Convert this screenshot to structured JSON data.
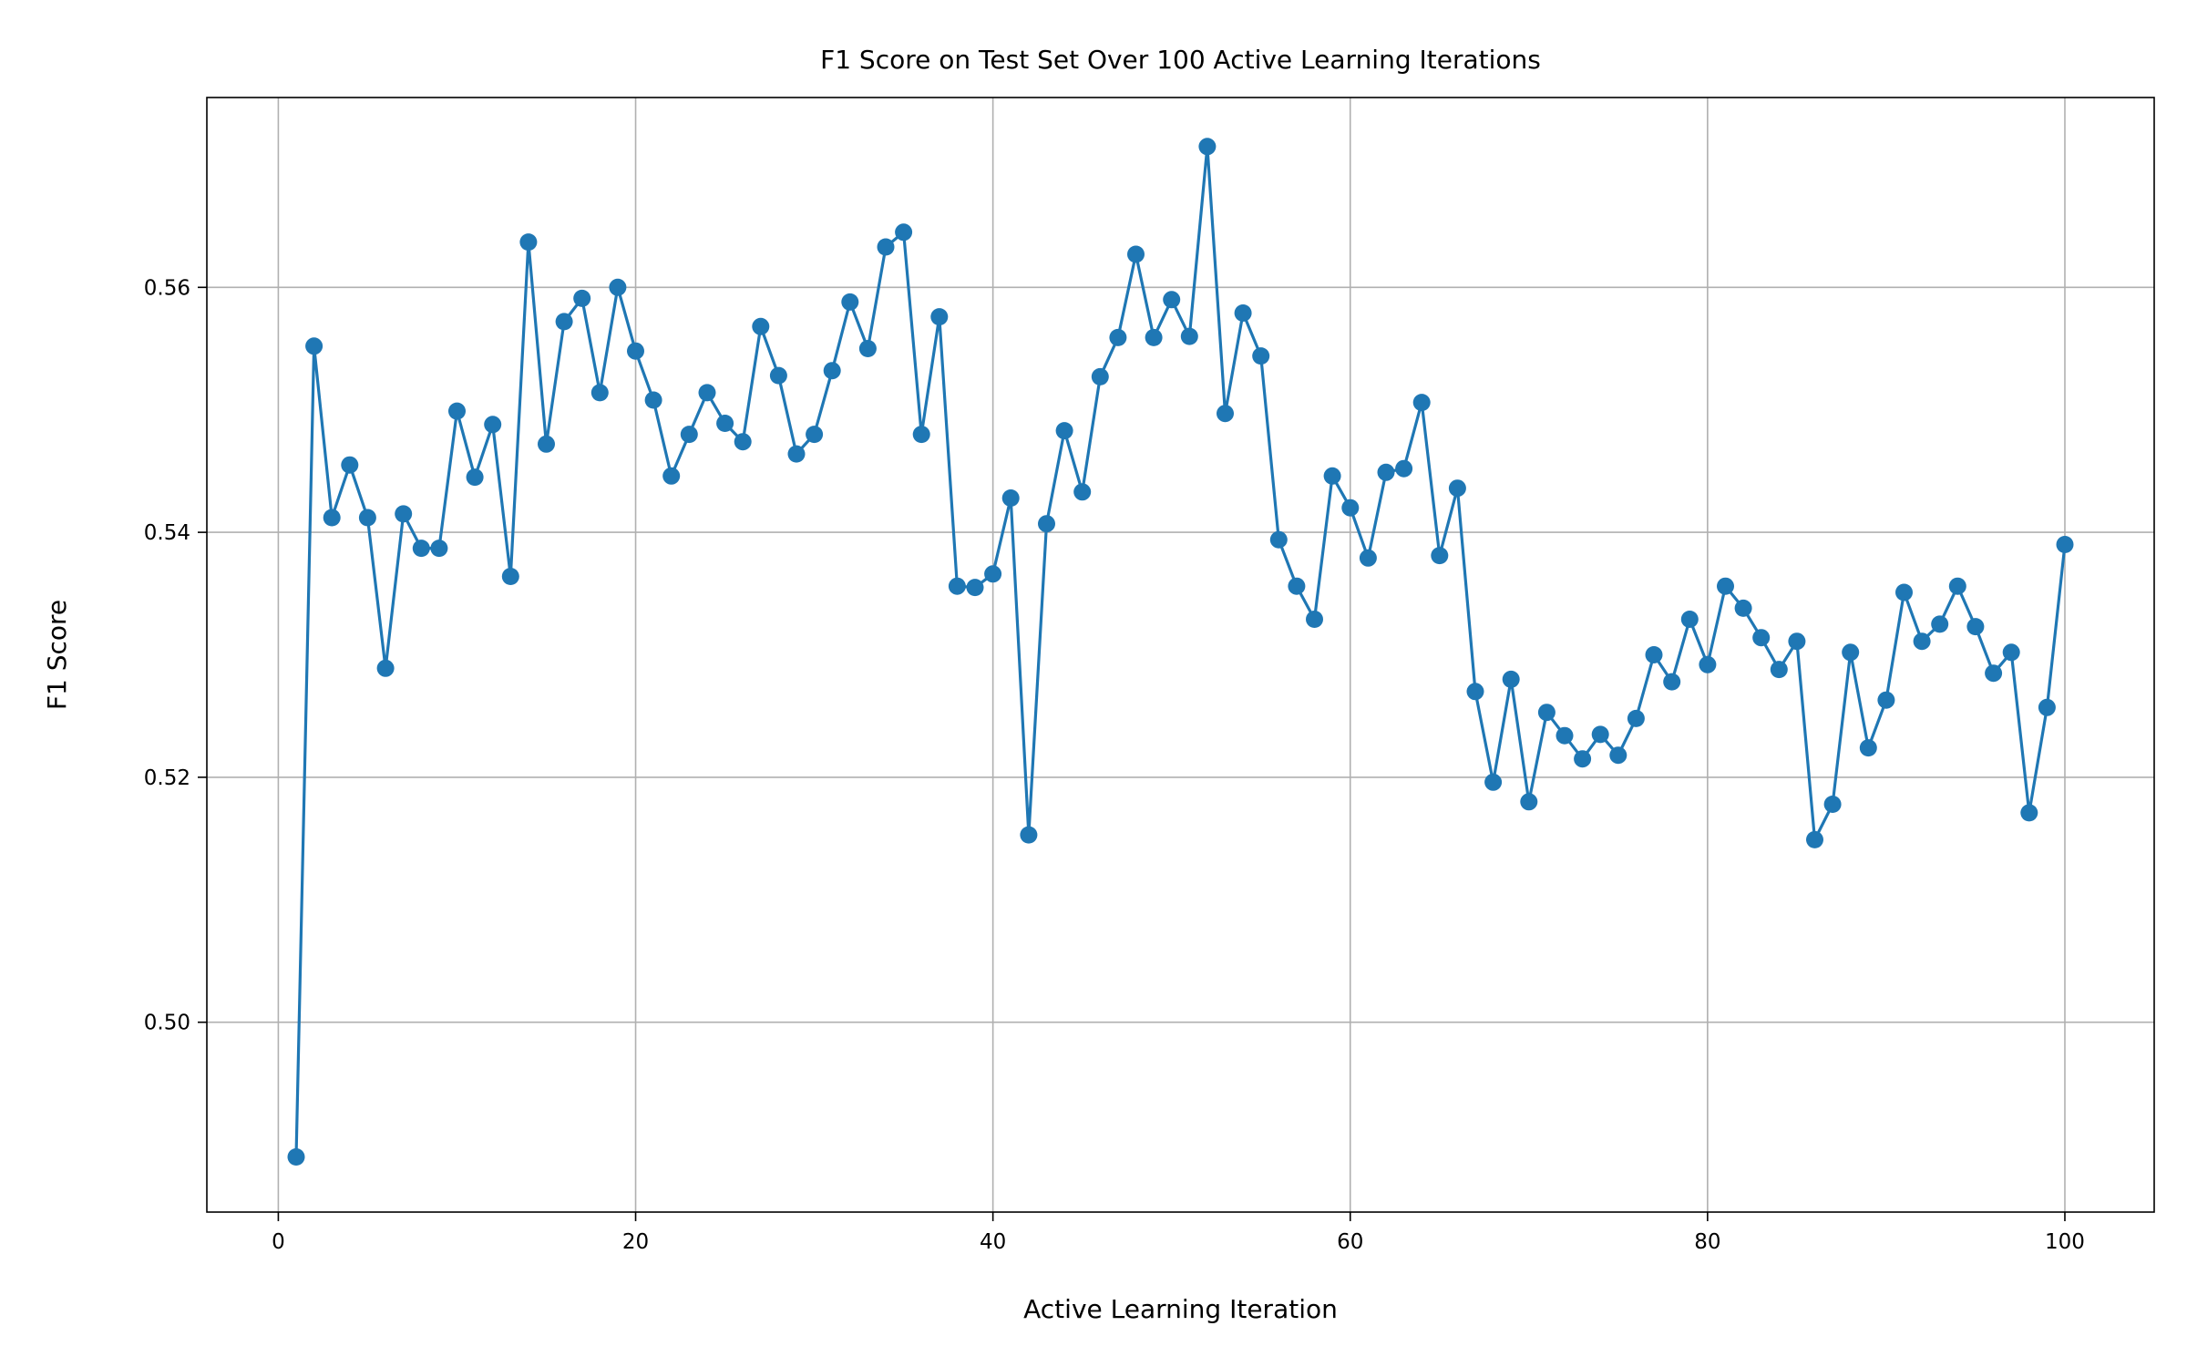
{
  "chart_data": {
    "type": "line",
    "title": "F1 Score on Test Set Over 100 Active Learning Iterations",
    "xlabel": "Active Learning Iteration",
    "ylabel": "F1 Score",
    "xlim": [
      -4,
      105
    ],
    "ylim": [
      0.4845,
      0.5755
    ],
    "xticks": [
      0,
      20,
      40,
      60,
      80,
      100
    ],
    "yticks": [
      0.5,
      0.52,
      0.54,
      0.56
    ],
    "xtick_labels": [
      "0",
      "20",
      "40",
      "60",
      "80",
      "100"
    ],
    "ytick_labels": [
      "0.50",
      "0.52",
      "0.54",
      "0.56"
    ],
    "grid": true,
    "marker": "circle",
    "color": "#1f77b4",
    "series": [
      {
        "x": [
          1,
          2,
          3,
          4,
          5,
          6,
          7,
          8,
          9,
          10,
          11,
          12,
          13,
          14,
          15,
          16,
          17,
          18,
          19,
          20,
          21,
          22,
          23,
          24,
          25,
          26,
          27,
          28,
          29,
          30,
          31,
          32,
          33,
          34,
          35,
          36,
          37,
          38,
          39,
          40,
          41,
          42,
          43,
          44,
          45,
          46,
          47,
          48,
          49,
          50,
          51,
          52,
          53,
          54,
          55,
          56,
          57,
          58,
          59,
          60,
          61,
          62,
          63,
          64,
          65,
          66,
          67,
          68,
          69,
          70,
          71,
          72,
          73,
          74,
          75,
          76,
          77,
          78,
          79,
          80,
          81,
          82,
          83,
          84,
          85,
          86,
          87,
          88,
          89,
          90,
          91,
          92,
          93,
          94,
          95,
          96,
          97,
          98,
          99,
          100
        ],
        "y": [
          0.489,
          0.5552,
          0.5412,
          0.5455,
          0.5412,
          0.5289,
          0.5415,
          0.5387,
          0.5387,
          0.5499,
          0.5445,
          0.5488,
          0.5364,
          0.5637,
          0.5472,
          0.5572,
          0.5591,
          0.5514,
          0.56,
          0.5548,
          0.5508,
          0.5446,
          0.548,
          0.5514,
          0.5489,
          0.5474,
          0.5568,
          0.5528,
          0.5464,
          0.548,
          0.5532,
          0.5588,
          0.555,
          0.5633,
          0.5645,
          0.548,
          0.5576,
          0.5356,
          0.5355,
          0.5366,
          0.5428,
          0.5153,
          0.5407,
          0.5483,
          0.5433,
          0.5527,
          0.5559,
          0.5627,
          0.5559,
          0.559,
          0.556,
          0.5715,
          0.5497,
          0.5579,
          0.5544,
          0.5394,
          0.5356,
          0.5329,
          0.5446,
          0.542,
          0.5379,
          0.5449,
          0.5452,
          0.5506,
          0.5381,
          0.5436,
          0.527,
          0.5196,
          0.528,
          0.518,
          0.5253,
          0.5234,
          0.5215,
          0.5235,
          0.5218,
          0.5248,
          0.53,
          0.5278,
          0.5329,
          0.5292,
          0.5356,
          0.5338,
          0.5314,
          0.5288,
          0.5311,
          0.5149,
          0.5178,
          0.5302,
          0.5224,
          0.5263,
          0.5351,
          0.5311,
          0.5325,
          0.5356,
          0.5323,
          0.5285,
          0.5302,
          0.5171,
          0.5257,
          0.539
        ]
      }
    ]
  }
}
